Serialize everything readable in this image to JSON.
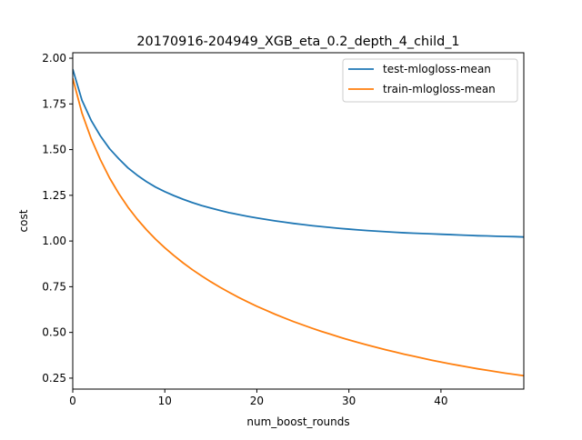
{
  "chart_data": {
    "type": "line",
    "title": "20170916-204949_XGB_eta_0.2_depth_4_child_1",
    "xlabel": "num_boost_rounds",
    "ylabel": "cost",
    "xlim": [
      0,
      49
    ],
    "ylim": [
      0.19,
      2.03
    ],
    "x_ticks": [
      0,
      10,
      20,
      30,
      40
    ],
    "x_tick_labels": [
      "0",
      "10",
      "20",
      "30",
      "40"
    ],
    "y_ticks": [
      0.25,
      0.5,
      0.75,
      1.0,
      1.25,
      1.5,
      1.75,
      2.0
    ],
    "y_tick_labels": [
      "0.25",
      "0.50",
      "0.75",
      "1.00",
      "1.25",
      "1.50",
      "1.75",
      "2.00"
    ],
    "grid": false,
    "legend_position": "top-right",
    "x": [
      0,
      1,
      2,
      3,
      4,
      5,
      6,
      7,
      8,
      9,
      10,
      11,
      12,
      13,
      14,
      15,
      16,
      17,
      18,
      19,
      20,
      21,
      22,
      23,
      24,
      25,
      26,
      27,
      28,
      29,
      30,
      31,
      32,
      33,
      34,
      35,
      36,
      37,
      38,
      39,
      40,
      41,
      42,
      43,
      44,
      45,
      46,
      47,
      48,
      49
    ],
    "series": [
      {
        "name": "test-mlogloss-mean",
        "color": "#1f77b4",
        "values": [
          1.94,
          1.77,
          1.66,
          1.575,
          1.505,
          1.45,
          1.4,
          1.36,
          1.325,
          1.295,
          1.27,
          1.248,
          1.228,
          1.21,
          1.194,
          1.18,
          1.167,
          1.155,
          1.145,
          1.135,
          1.126,
          1.118,
          1.11,
          1.103,
          1.096,
          1.09,
          1.084,
          1.079,
          1.074,
          1.069,
          1.065,
          1.061,
          1.057,
          1.054,
          1.051,
          1.048,
          1.045,
          1.043,
          1.041,
          1.039,
          1.037,
          1.035,
          1.033,
          1.031,
          1.029,
          1.028,
          1.026,
          1.025,
          1.024,
          1.022
        ]
      },
      {
        "name": "train-mlogloss-mean",
        "color": "#ff7f0e",
        "values": [
          1.89,
          1.7,
          1.56,
          1.445,
          1.345,
          1.26,
          1.185,
          1.12,
          1.062,
          1.01,
          0.963,
          0.92,
          0.88,
          0.843,
          0.809,
          0.777,
          0.747,
          0.719,
          0.692,
          0.667,
          0.643,
          0.621,
          0.599,
          0.579,
          0.559,
          0.541,
          0.523,
          0.506,
          0.49,
          0.474,
          0.459,
          0.445,
          0.431,
          0.418,
          0.405,
          0.393,
          0.381,
          0.37,
          0.359,
          0.348,
          0.338,
          0.328,
          0.319,
          0.31,
          0.301,
          0.293,
          0.285,
          0.277,
          0.27,
          0.263
        ]
      }
    ]
  }
}
